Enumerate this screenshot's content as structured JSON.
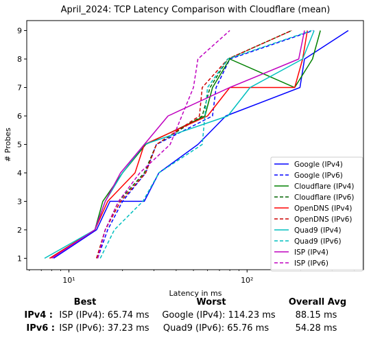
{
  "chart_data": {
    "type": "line",
    "title": "April_2024: TCP Latency Comparison with Cloudflare (mean)",
    "xlabel": "Latency in ms",
    "ylabel": "# Probes",
    "xscale": "log",
    "xlim": [
      5.8,
      450
    ],
    "ylim": [
      0.6,
      9.35
    ],
    "xticks": [
      {
        "value": 10,
        "label": "10¹"
      },
      {
        "value": 100,
        "label": "10²"
      }
    ],
    "yticks": [
      1,
      2,
      3,
      4,
      5,
      6,
      7,
      8,
      9
    ],
    "legend_position": "lower right",
    "series": [
      {
        "name": "Google (IPv4)",
        "color": "#0000ff",
        "dash": "solid",
        "x": [
          8.2,
          14.3,
          17,
          26.5,
          32,
          53,
          76,
          198,
          210,
          370
        ],
        "y": [
          1,
          2,
          3,
          3,
          4,
          5,
          6,
          7,
          8,
          9
        ]
      },
      {
        "name": "Google (IPv6)",
        "color": "#0000ff",
        "dash": "dashed",
        "x": [
          14.5,
          16.5,
          20,
          27,
          31,
          64,
          67,
          80,
          235
        ],
        "y": [
          1,
          2,
          3,
          4,
          5,
          6,
          7,
          8,
          9
        ]
      },
      {
        "name": "Cloudflare (IPv4)",
        "color": "#008000",
        "dash": "solid",
        "x": [
          7.8,
          14,
          15.5,
          20,
          27,
          58,
          64,
          80,
          185,
          233,
          258
        ],
        "y": [
          1,
          2,
          3,
          4,
          5,
          6,
          7,
          8,
          7,
          8,
          9
        ]
      },
      {
        "name": "Cloudflare (IPv6)",
        "color": "#006400",
        "dash": "dashed",
        "x": [
          14.3,
          16,
          19,
          26.5,
          31,
          56,
          62,
          78,
          178
        ],
        "y": [
          1,
          2,
          3,
          4,
          5,
          6,
          7,
          8,
          9
        ]
      },
      {
        "name": "OpenDNS (IPv4)",
        "color": "#ff0000",
        "dash": "solid",
        "x": [
          7.8,
          14,
          16.5,
          23.5,
          26.5,
          60,
          80,
          185,
          205,
          218
        ],
        "y": [
          1,
          2,
          3,
          4,
          5,
          6,
          7,
          7,
          8,
          9
        ]
      },
      {
        "name": "OpenDNS (IPv6)",
        "color": "#cc0000",
        "dash": "dashed",
        "x": [
          14.3,
          16,
          19.5,
          27,
          31,
          54,
          56,
          78,
          178
        ],
        "y": [
          1,
          2,
          3,
          4,
          5,
          6,
          7,
          8,
          9
        ]
      },
      {
        "name": "Quad9 (IPv4)",
        "color": "#00bfbf",
        "dash": "solid",
        "x": [
          7.3,
          14,
          16,
          20,
          26.5,
          78,
          104,
          205,
          238
        ],
        "y": [
          1,
          2,
          3,
          4,
          5,
          6,
          7,
          8,
          9
        ]
      },
      {
        "name": "Quad9 (IPv6)",
        "color": "#00bfbf",
        "dash": "dashed",
        "x": [
          15,
          18,
          26,
          32,
          56,
          60,
          78,
          230
        ],
        "y": [
          1,
          2,
          3,
          4,
          5,
          7,
          8,
          9
        ]
      },
      {
        "name": "ISP (IPv4)",
        "color": "#bf00bf",
        "dash": "solid",
        "x": [
          8,
          14,
          16,
          19.5,
          26.5,
          36,
          80,
          195,
          210
        ],
        "y": [
          1,
          2,
          3,
          4,
          5,
          6,
          7,
          8,
          9
        ]
      },
      {
        "name": "ISP (IPv6)",
        "color": "#bf00bf",
        "dash": "dashed",
        "x": [
          14.5,
          16,
          19,
          25,
          37,
          50,
          53,
          80
        ],
        "y": [
          1,
          2,
          3,
          4,
          5,
          7,
          8,
          9
        ]
      }
    ]
  },
  "stats": {
    "headers": {
      "best": "Best",
      "worst": "Worst",
      "overall": "Overall Avg"
    },
    "rows": [
      {
        "label": "IPv4 :",
        "best": "ISP (IPv4): 65.74 ms",
        "worst": "Google (IPv4): 114.23 ms",
        "overall": "88.15 ms"
      },
      {
        "label": "IPv6 :",
        "best": "ISP (IPv6): 37.23 ms",
        "worst": "Quad9 (IPv6): 65.76 ms",
        "overall": "54.28 ms"
      }
    ]
  }
}
